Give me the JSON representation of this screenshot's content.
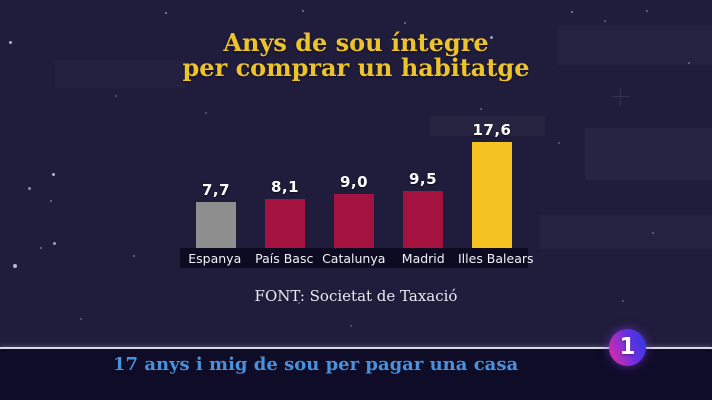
{
  "header": {
    "title_lines": [
      "Anys de sou íntegre",
      "per comprar un habitatge"
    ]
  },
  "chart_data": {
    "type": "bar",
    "title": "Anys de sou íntegre per comprar un habitatge",
    "categories": [
      "Espanya",
      "País Basc",
      "Catalunya",
      "Madrid",
      "Illes Balears"
    ],
    "values": [
      7.7,
      8.1,
      9.0,
      9.5,
      17.6
    ],
    "value_labels": [
      "7,7",
      "8,1",
      "9,0",
      "9,5",
      "17,6"
    ],
    "bar_colors": [
      "#8e8e8e",
      "#a41240",
      "#a41240",
      "#a41240",
      "#f5c321"
    ],
    "xlabel": "",
    "ylabel": "",
    "ylim": [
      0,
      18
    ],
    "grid": false,
    "legend": false,
    "units": "anys de sou"
  },
  "source": {
    "label": "FONT: Societat de Taxació"
  },
  "ticker": {
    "headline": "17 anys i mig de sou per pagar una casa",
    "channel_logo": "1"
  },
  "colors": {
    "background": "#201c3c",
    "title_gold": "#edc32b",
    "bar_gray": "#8e8e8e",
    "bar_crimson": "#a41240",
    "bar_yellow": "#f5c321",
    "ticker_bg": "#0f0c28",
    "ticker_text_blue": "#4a90da",
    "label_strip": "#0d0b22",
    "divider": "#d8d7e0"
  }
}
